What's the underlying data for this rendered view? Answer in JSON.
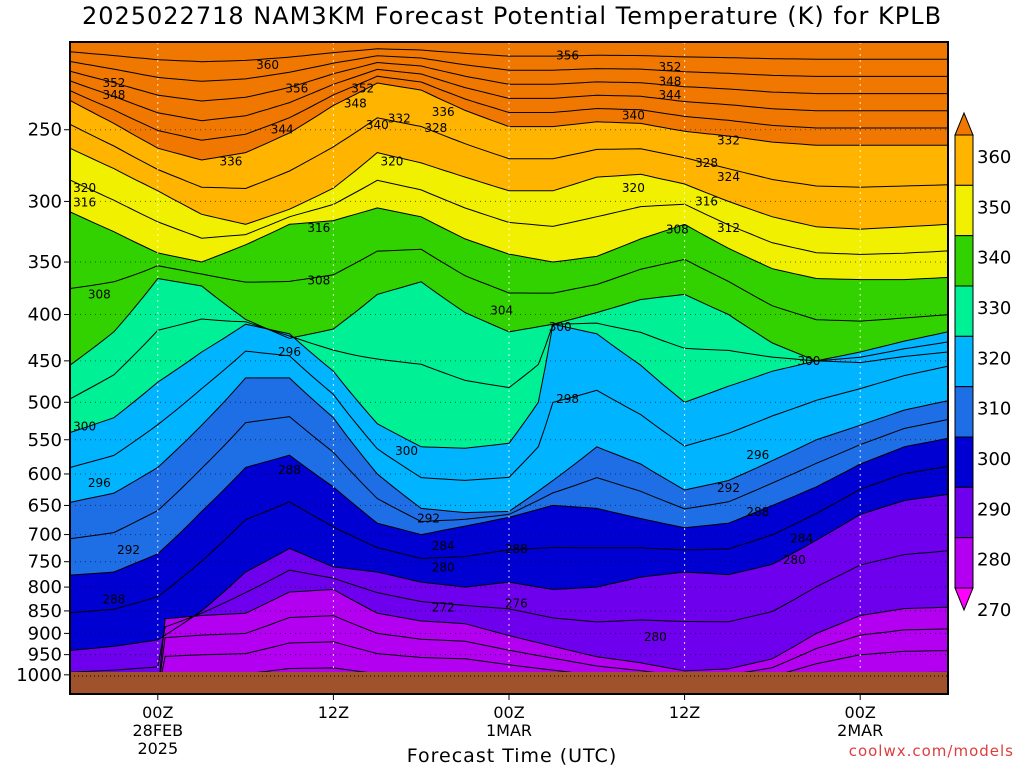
{
  "chart_data": {
    "type": "heatmap",
    "title": "2025022718 NAM3KM Forecast Potential Temperature (K) for KPLB",
    "xlabel": "Forecast Time (UTC)",
    "ylabel": "",
    "y_axis": {
      "scale": "log",
      "inverted": true,
      "unit": "hPa",
      "ticks": [
        250,
        300,
        350,
        400,
        450,
        500,
        550,
        600,
        650,
        700,
        750,
        800,
        850,
        900,
        950,
        1000
      ],
      "range": [
        200,
        1050
      ]
    },
    "x_axis": {
      "unit": "hours from start",
      "range": [
        0,
        60
      ],
      "ticks": [
        {
          "value": 6,
          "lines": [
            "00Z",
            "28FEB",
            "2025"
          ]
        },
        {
          "value": 18,
          "lines": [
            "12Z"
          ]
        },
        {
          "value": 30,
          "lines": [
            "00Z",
            "1MAR"
          ]
        },
        {
          "value": 42,
          "lines": [
            "12Z"
          ]
        },
        {
          "value": 54,
          "lines": [
            "00Z",
            "2MAR"
          ]
        }
      ]
    },
    "colorbar": {
      "levels": [
        270,
        280,
        290,
        300,
        310,
        320,
        330,
        340,
        350,
        360
      ],
      "colors": [
        "#ff00ff",
        "#b400f0",
        "#6e00ee",
        "#0000d2",
        "#1e6ee6",
        "#00b4ff",
        "#00f096",
        "#32d200",
        "#f0f000",
        "#ffb400",
        "#f07800"
      ]
    },
    "contour_interval_K": 4,
    "contour_labels": [
      {
        "x": 3,
        "p": 222,
        "v": "352"
      },
      {
        "x": 3,
        "p": 229,
        "v": "348"
      },
      {
        "x": 13.5,
        "p": 212,
        "v": "360"
      },
      {
        "x": 15.5,
        "p": 225,
        "v": "356"
      },
      {
        "x": 20,
        "p": 225,
        "v": "352"
      },
      {
        "x": 19.5,
        "p": 234,
        "v": "348"
      },
      {
        "x": 21,
        "p": 247,
        "v": "340"
      },
      {
        "x": 22.5,
        "p": 243,
        "v": "332"
      },
      {
        "x": 25.5,
        "p": 239,
        "v": "336"
      },
      {
        "x": 25,
        "p": 249,
        "v": "328"
      },
      {
        "x": 14.5,
        "p": 250,
        "v": "344"
      },
      {
        "x": 11,
        "p": 271,
        "v": "336"
      },
      {
        "x": 22,
        "p": 271,
        "v": "320"
      },
      {
        "x": 34,
        "p": 207,
        "v": "356"
      },
      {
        "x": 41,
        "p": 213,
        "v": "352"
      },
      {
        "x": 41,
        "p": 221,
        "v": "348"
      },
      {
        "x": 41,
        "p": 229,
        "v": "344"
      },
      {
        "x": 38.5,
        "p": 241,
        "v": "340"
      },
      {
        "x": 45,
        "p": 257,
        "v": "332"
      },
      {
        "x": 43.5,
        "p": 272,
        "v": "328"
      },
      {
        "x": 45,
        "p": 282,
        "v": "324"
      },
      {
        "x": 38.5,
        "p": 290,
        "v": "320"
      },
      {
        "x": 43.5,
        "p": 300,
        "v": "316"
      },
      {
        "x": 1,
        "p": 290,
        "v": "320"
      },
      {
        "x": 1,
        "p": 301,
        "v": "316"
      },
      {
        "x": 17,
        "p": 321,
        "v": "316"
      },
      {
        "x": 41.5,
        "p": 322,
        "v": "308"
      },
      {
        "x": 45,
        "p": 321,
        "v": "312"
      },
      {
        "x": 2,
        "p": 380,
        "v": "308"
      },
      {
        "x": 17,
        "p": 367,
        "v": "308"
      },
      {
        "x": 29.5,
        "p": 396,
        "v": "304"
      },
      {
        "x": 33.5,
        "p": 413,
        "v": "300"
      },
      {
        "x": 15,
        "p": 440,
        "v": "296"
      },
      {
        "x": 50.5,
        "p": 450,
        "v": "300"
      },
      {
        "x": 34,
        "p": 496,
        "v": "298"
      },
      {
        "x": 1,
        "p": 532,
        "v": "300"
      },
      {
        "x": 23,
        "p": 566,
        "v": "300"
      },
      {
        "x": 47,
        "p": 572,
        "v": "296"
      },
      {
        "x": 2,
        "p": 614,
        "v": "296"
      },
      {
        "x": 15,
        "p": 594,
        "v": "288"
      },
      {
        "x": 45,
        "p": 622,
        "v": "292"
      },
      {
        "x": 47,
        "p": 661,
        "v": "288"
      },
      {
        "x": 24.5,
        "p": 672,
        "v": "292"
      },
      {
        "x": 4,
        "p": 728,
        "v": "292"
      },
      {
        "x": 50,
        "p": 707,
        "v": "284"
      },
      {
        "x": 25.5,
        "p": 721,
        "v": "284"
      },
      {
        "x": 30.5,
        "p": 726,
        "v": "288"
      },
      {
        "x": 25.5,
        "p": 761,
        "v": "280"
      },
      {
        "x": 49.5,
        "p": 747,
        "v": "280"
      },
      {
        "x": 3,
        "p": 826,
        "v": "288"
      },
      {
        "x": 25.5,
        "p": 843,
        "v": "272"
      },
      {
        "x": 30.5,
        "p": 834,
        "v": "276"
      },
      {
        "x": 40,
        "p": 908,
        "v": "280"
      }
    ],
    "series": [
      {
        "values": [
          [
            0,
            232
          ],
          [
            3,
            246
          ],
          [
            6,
            262
          ],
          [
            9,
            270
          ],
          [
            12,
            265
          ],
          [
            15,
            252
          ],
          [
            18,
            235
          ],
          [
            21,
            222
          ],
          [
            24,
            226
          ],
          [
            27,
            238
          ],
          [
            30,
            248
          ],
          [
            33,
            248
          ],
          [
            36,
            245
          ],
          [
            39,
            246
          ],
          [
            42,
            251
          ],
          [
            45,
            254
          ],
          [
            48,
            258
          ],
          [
            51,
            260
          ],
          [
            54,
            260
          ],
          [
            57,
            260
          ],
          [
            60,
            260
          ]
        ]
      },
      {
        "values": [
          [
            0,
            262
          ],
          [
            3,
            276
          ],
          [
            6,
            292
          ],
          [
            9,
            310
          ],
          [
            12,
            318
          ],
          [
            15,
            306
          ],
          [
            18,
            290
          ],
          [
            21,
            265
          ],
          [
            24,
            272
          ],
          [
            27,
            282
          ],
          [
            30,
            292
          ],
          [
            33,
            292
          ],
          [
            36,
            282
          ],
          [
            39,
            280
          ],
          [
            42,
            287
          ],
          [
            45,
            300
          ],
          [
            48,
            312
          ],
          [
            51,
            320
          ],
          [
            54,
            322
          ],
          [
            57,
            320
          ],
          [
            60,
            318
          ]
        ]
      },
      {
        "values": [
          [
            0,
            308
          ],
          [
            3,
            324
          ],
          [
            6,
            342
          ],
          [
            9,
            350
          ],
          [
            12,
            335
          ],
          [
            15,
            318
          ],
          [
            18,
            315
          ],
          [
            21,
            305
          ],
          [
            24,
            312
          ],
          [
            27,
            330
          ],
          [
            30,
            343
          ],
          [
            33,
            350
          ],
          [
            36,
            345
          ],
          [
            39,
            330
          ],
          [
            42,
            318
          ],
          [
            45,
            338
          ],
          [
            48,
            356
          ],
          [
            51,
            365
          ],
          [
            54,
            366
          ],
          [
            57,
            366
          ],
          [
            60,
            364
          ]
        ]
      },
      {
        "values": [
          [
            0,
            455
          ],
          [
            3,
            418
          ],
          [
            6,
            365
          ],
          [
            9,
            372
          ],
          [
            12,
            405
          ],
          [
            15,
            425
          ],
          [
            18,
            415
          ],
          [
            21,
            380
          ],
          [
            24,
            368
          ],
          [
            27,
            398
          ],
          [
            30,
            418
          ],
          [
            33,
            410
          ],
          [
            36,
            398
          ],
          [
            39,
            385
          ],
          [
            42,
            380
          ],
          [
            45,
            400
          ],
          [
            48,
            430
          ],
          [
            51,
            450
          ],
          [
            54,
            452
          ],
          [
            57,
            445
          ],
          [
            60,
            440
          ]
        ]
      },
      {
        "values": [
          [
            0,
            540
          ],
          [
            3,
            520
          ],
          [
            6,
            475
          ],
          [
            9,
            440
          ],
          [
            12,
            410
          ],
          [
            15,
            420
          ],
          [
            18,
            462
          ],
          [
            21,
            528
          ],
          [
            24,
            560
          ],
          [
            27,
            562
          ],
          [
            30,
            555
          ],
          [
            32,
            500
          ],
          [
            33,
            410
          ],
          [
            36,
            420
          ],
          [
            39,
            455
          ],
          [
            42,
            500
          ],
          [
            45,
            480
          ],
          [
            48,
            462
          ],
          [
            51,
            450
          ],
          [
            54,
            440
          ],
          [
            57,
            428
          ],
          [
            60,
            418
          ]
        ]
      },
      {
        "values": [
          [
            0,
            645
          ],
          [
            3,
            630
          ],
          [
            6,
            590
          ],
          [
            9,
            530
          ],
          [
            12,
            470
          ],
          [
            15,
            470
          ],
          [
            18,
            520
          ],
          [
            21,
            600
          ],
          [
            24,
            655
          ],
          [
            27,
            662
          ],
          [
            30,
            660
          ],
          [
            33,
            610
          ],
          [
            36,
            560
          ],
          [
            39,
            585
          ],
          [
            42,
            625
          ],
          [
            45,
            610
          ],
          [
            48,
            580
          ],
          [
            51,
            550
          ],
          [
            54,
            530
          ],
          [
            57,
            510
          ],
          [
            60,
            498
          ]
        ]
      },
      {
        "values": [
          [
            0,
            776
          ],
          [
            3,
            770
          ],
          [
            6,
            735
          ],
          [
            9,
            660
          ],
          [
            12,
            590
          ],
          [
            15,
            572
          ],
          [
            18,
            620
          ],
          [
            21,
            680
          ],
          [
            24,
            700
          ],
          [
            27,
            685
          ],
          [
            30,
            670
          ],
          [
            33,
            650
          ],
          [
            36,
            655
          ],
          [
            39,
            672
          ],
          [
            42,
            688
          ],
          [
            45,
            680
          ],
          [
            48,
            650
          ],
          [
            51,
            620
          ],
          [
            54,
            585
          ],
          [
            57,
            560
          ],
          [
            60,
            548
          ]
        ]
      },
      {
        "values": [
          [
            0,
            940
          ],
          [
            3,
            930
          ],
          [
            6,
            915
          ],
          [
            9,
            850
          ],
          [
            12,
            770
          ],
          [
            15,
            725
          ],
          [
            18,
            760
          ],
          [
            21,
            770
          ],
          [
            24,
            790
          ],
          [
            27,
            800
          ],
          [
            30,
            790
          ],
          [
            33,
            805
          ],
          [
            36,
            800
          ],
          [
            39,
            780
          ],
          [
            42,
            770
          ],
          [
            45,
            775
          ],
          [
            48,
            755
          ],
          [
            51,
            710
          ],
          [
            54,
            665
          ],
          [
            57,
            642
          ],
          [
            60,
            632
          ]
        ]
      },
      {
        "values": [
          [
            0,
            1050
          ],
          [
            6,
            1050
          ],
          [
            6.2,
            868
          ],
          [
            9,
            860
          ],
          [
            12,
            855
          ],
          [
            15,
            810
          ],
          [
            18,
            805
          ],
          [
            21,
            855
          ],
          [
            24,
            872
          ],
          [
            27,
            878
          ],
          [
            30,
            905
          ],
          [
            33,
            930
          ],
          [
            36,
            955
          ],
          [
            39,
            970
          ],
          [
            42,
            990
          ],
          [
            45,
            985
          ],
          [
            48,
            960
          ],
          [
            51,
            900
          ],
          [
            54,
            860
          ],
          [
            57,
            845
          ],
          [
            60,
            842
          ]
        ]
      }
    ]
  },
  "watermark": "coolwx.com/models"
}
